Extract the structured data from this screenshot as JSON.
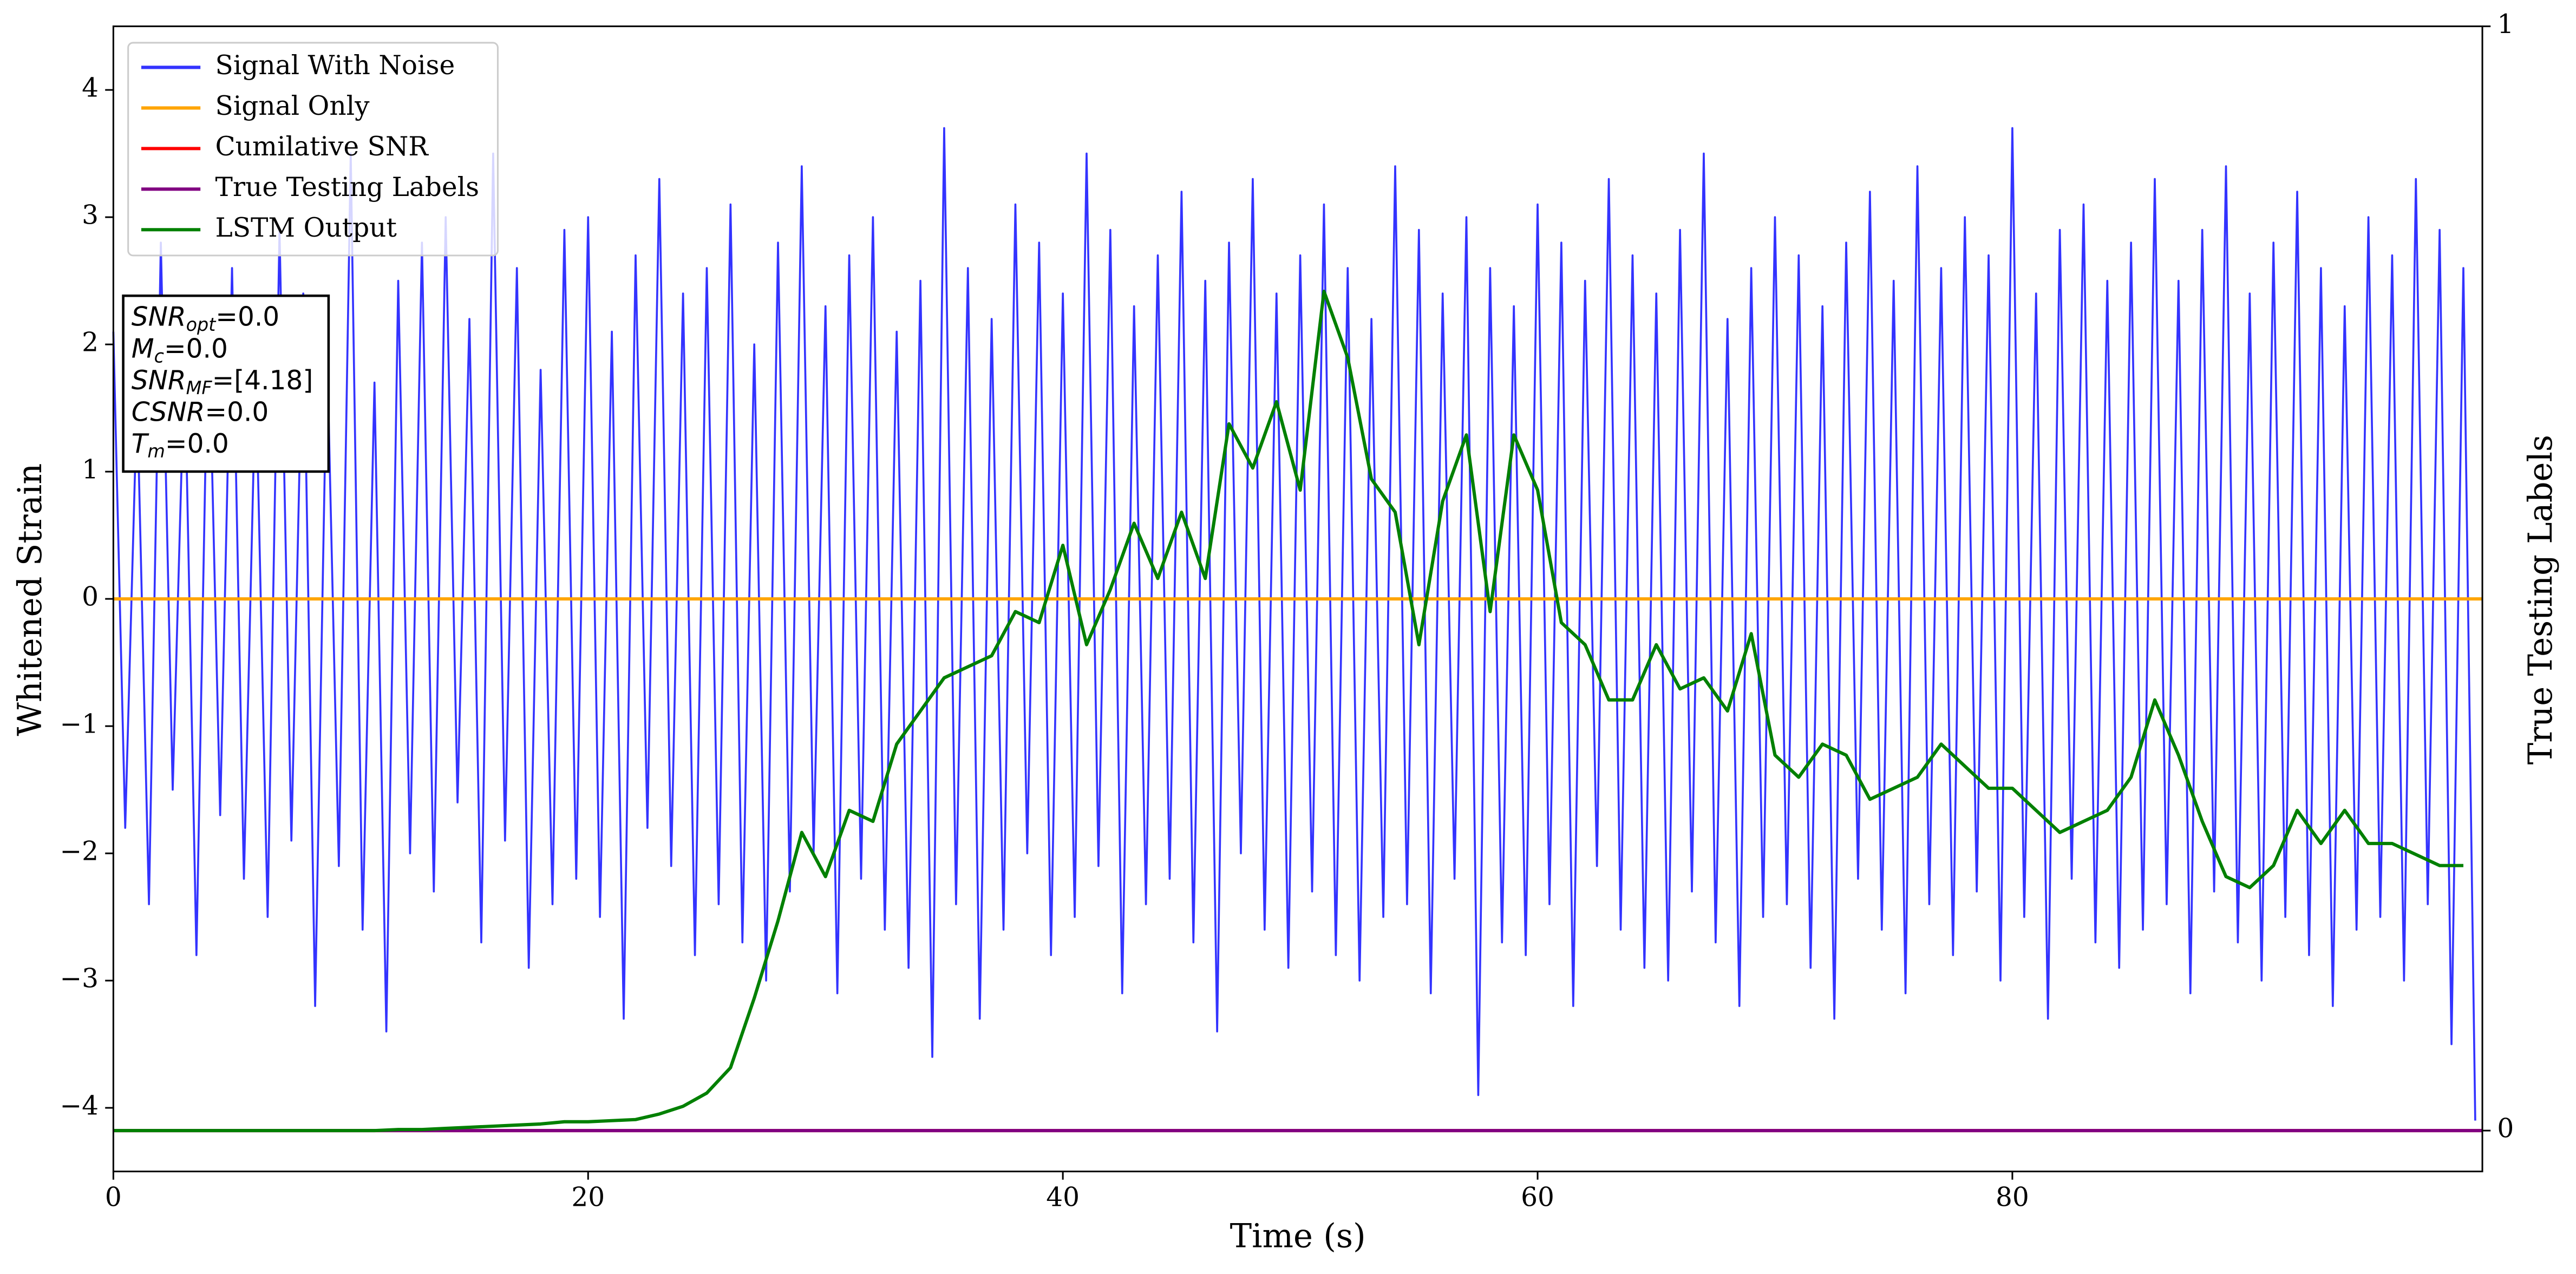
{
  "chart_data": {
    "type": "line",
    "xlabel": "Time (s)",
    "ylabel": "Whitened Strain",
    "y2label": "True Testing Labels",
    "xlim": [
      0,
      99.8
    ],
    "xticks": [
      0,
      20,
      40,
      60,
      80
    ],
    "ylim": [
      -4.5,
      4.5
    ],
    "yticks": [
      {
        "value": -4,
        "label": "−4"
      },
      {
        "value": -3,
        "label": "−3"
      },
      {
        "value": -2,
        "label": "−2"
      },
      {
        "value": -1,
        "label": "−1"
      },
      0,
      1,
      2,
      3,
      4
    ],
    "y2lim": [
      -0.037,
      1
    ],
    "y2ticks": [
      0,
      1
    ],
    "legend": "upper left",
    "annotations": [
      {
        "base": "SNR",
        "sub": "opt",
        "rest": "=0.0"
      },
      {
        "base": "M",
        "sub": "c",
        "rest": "=0.0"
      },
      {
        "base": "SNR",
        "sub": "MF",
        "rest": "=[4.18]"
      },
      {
        "base": "CSNR",
        "sub": null,
        "rest": "=0.0"
      },
      {
        "base": "T",
        "sub": "m",
        "rest": "=0.0"
      }
    ],
    "series": [
      {
        "name": "Signal With Noise",
        "color": "#3333ff",
        "axis": "y",
        "x": [
          0,
          0.5,
          1,
          1.5,
          2,
          2.5,
          3,
          3.5,
          4,
          4.5,
          5,
          5.5,
          6,
          6.5,
          7,
          7.5,
          8,
          8.5,
          9,
          9.5,
          10,
          10.5,
          11,
          11.5,
          12,
          12.5,
          13,
          13.5,
          14,
          14.5,
          15,
          15.5,
          16,
          16.5,
          17,
          17.5,
          18,
          18.5,
          19,
          19.5,
          20,
          20.5,
          21,
          21.5,
          22,
          22.5,
          23,
          23.5,
          24,
          24.5,
          25,
          25.5,
          26,
          26.5,
          27,
          27.5,
          28,
          28.5,
          29,
          29.5,
          30,
          30.5,
          31,
          31.5,
          32,
          32.5,
          33,
          33.5,
          34,
          34.5,
          35,
          35.5,
          36,
          36.5,
          37,
          37.5,
          38,
          38.5,
          39,
          39.5,
          40,
          40.5,
          41,
          41.5,
          42,
          42.5,
          43,
          43.5,
          44,
          44.5,
          45,
          45.5,
          46,
          46.5,
          47,
          47.5,
          48,
          48.5,
          49,
          49.5,
          50,
          50.5,
          51,
          51.5,
          52,
          52.5,
          53,
          53.5,
          54,
          54.5,
          55,
          55.5,
          56,
          56.5,
          57,
          57.5,
          58,
          58.5,
          59,
          59.5,
          60,
          60.5,
          61,
          61.5,
          62,
          62.5,
          63,
          63.5,
          64,
          64.5,
          65,
          65.5,
          66,
          66.5,
          67,
          67.5,
          68,
          68.5,
          69,
          69.5,
          70,
          70.5,
          71,
          71.5,
          72,
          72.5,
          73,
          73.5,
          74,
          74.5,
          75,
          75.5,
          76,
          76.5,
          77,
          77.5,
          78,
          78.5,
          79,
          79.5,
          80,
          80.5,
          81,
          81.5,
          82,
          82.5,
          83,
          83.5,
          84,
          84.5,
          85,
          85.5,
          86,
          86.5,
          87,
          87.5,
          88,
          88.5,
          89,
          89.5,
          90,
          90.5,
          91,
          91.5,
          92,
          92.5,
          93,
          93.5,
          94,
          94.5,
          95,
          95.5,
          96,
          96.5,
          97,
          97.5,
          98,
          98.5,
          99,
          99.5
        ],
        "values": [
          2.1,
          -1.8,
          1.6,
          -2.4,
          2.8,
          -1.5,
          1.9,
          -2.8,
          2.3,
          -1.7,
          2.6,
          -2.2,
          1.8,
          -2.5,
          2.9,
          -1.9,
          2.4,
          -3.2,
          2.0,
          -2.1,
          3.5,
          -2.6,
          1.7,
          -3.4,
          2.5,
          -2.0,
          2.8,
          -2.3,
          3.0,
          -1.6,
          2.2,
          -2.7,
          3.5,
          -1.9,
          2.6,
          -2.9,
          1.8,
          -2.4,
          2.9,
          -2.2,
          3.0,
          -2.5,
          2.1,
          -3.3,
          2.7,
          -1.8,
          3.3,
          -2.1,
          2.4,
          -2.8,
          2.6,
          -2.4,
          3.1,
          -2.7,
          2.0,
          -3.0,
          2.8,
          -2.3,
          3.4,
          -2.0,
          2.3,
          -3.1,
          2.7,
          -2.2,
          3.0,
          -2.6,
          2.1,
          -2.9,
          2.5,
          -3.6,
          3.7,
          -2.4,
          2.6,
          -3.3,
          2.2,
          -2.6,
          3.1,
          -2.0,
          2.8,
          -2.8,
          2.4,
          -2.5,
          3.5,
          -2.1,
          2.9,
          -3.1,
          2.3,
          -2.4,
          2.7,
          -2.2,
          3.2,
          -2.7,
          2.5,
          -3.4,
          2.8,
          -2.0,
          3.3,
          -2.6,
          2.4,
          -2.9,
          2.7,
          -2.3,
          3.1,
          -2.8,
          2.6,
          -3.0,
          2.2,
          -2.5,
          3.4,
          -2.4,
          2.9,
          -3.1,
          2.4,
          -2.2,
          3.0,
          -3.9,
          2.6,
          -2.7,
          2.3,
          -2.8,
          3.1,
          -2.4,
          2.8,
          -3.2,
          2.5,
          -2.1,
          3.3,
          -2.6,
          2.7,
          -2.9,
          2.4,
          -3.0,
          2.9,
          -2.3,
          3.5,
          -2.7,
          2.2,
          -3.2,
          2.6,
          -2.5,
          3.0,
          -2.4,
          2.7,
          -2.9,
          2.3,
          -3.3,
          2.8,
          -2.2,
          3.2,
          -2.6,
          2.5,
          -3.1,
          3.4,
          -2.4,
          2.6,
          -2.8,
          3.0,
          -2.3,
          2.7,
          -3.0,
          3.7,
          -2.5,
          2.4,
          -3.3,
          2.9,
          -2.2,
          3.1,
          -2.7,
          2.5,
          -2.9,
          2.8,
          -2.6,
          3.3,
          -2.4,
          2.5,
          -3.1,
          2.9,
          -2.3,
          3.4,
          -2.7,
          2.4,
          -3.0,
          2.8,
          -2.5,
          3.2,
          -2.8,
          2.6,
          -3.2,
          2.3,
          -2.6,
          3.0,
          -2.5,
          2.7,
          -3.0,
          3.3,
          -2.4,
          2.9,
          -3.5,
          2.6,
          -4.1
        ]
      },
      {
        "name": "Signal Only",
        "color": "#ffa500",
        "axis": "y",
        "x": [
          0,
          99.8
        ],
        "values": [
          0,
          0
        ]
      },
      {
        "name": "Cumilative SNR",
        "color": "#ff0000",
        "axis": "y2",
        "x": [
          0,
          99.8
        ],
        "values": [
          0,
          0
        ]
      },
      {
        "name": "True Testing Labels",
        "color": "#800080",
        "axis": "y2",
        "x": [
          0,
          99.8
        ],
        "values": [
          0,
          0
        ]
      },
      {
        "name": "LSTM Output",
        "color": "#008000",
        "axis": "y2",
        "x": [
          0,
          1,
          2,
          3,
          4,
          5,
          6,
          7,
          8,
          9,
          10,
          11,
          12,
          13,
          14,
          15,
          16,
          17,
          18,
          19,
          20,
          21,
          22,
          23,
          24,
          25,
          26,
          27,
          28,
          29,
          30,
          31,
          32,
          33,
          34,
          35,
          36,
          37,
          38,
          39,
          40,
          41,
          42,
          43,
          44,
          45,
          46,
          47,
          48,
          49,
          50,
          51,
          52,
          53,
          54,
          55,
          56,
          57,
          58,
          59,
          60,
          61,
          62,
          63,
          64,
          65,
          66,
          67,
          68,
          69,
          70,
          71,
          72,
          73,
          74,
          75,
          76,
          77,
          78,
          79,
          80,
          81,
          82,
          83,
          84,
          85,
          86,
          87,
          88,
          89,
          90,
          91,
          92,
          93,
          94,
          95,
          96,
          97,
          98,
          99
        ],
        "values": [
          0,
          0,
          0,
          0,
          0,
          0,
          0,
          0,
          0,
          0,
          0,
          0,
          0.001,
          0.001,
          0.002,
          0.003,
          0.004,
          0.005,
          0.006,
          0.008,
          0.008,
          0.009,
          0.01,
          0.015,
          0.022,
          0.034,
          0.057,
          0.12,
          0.19,
          0.27,
          0.23,
          0.29,
          0.28,
          0.35,
          0.38,
          0.41,
          0.42,
          0.43,
          0.47,
          0.46,
          0.53,
          0.44,
          0.49,
          0.55,
          0.5,
          0.56,
          0.5,
          0.64,
          0.6,
          0.66,
          0.58,
          0.76,
          0.7,
          0.59,
          0.56,
          0.44,
          0.57,
          0.63,
          0.47,
          0.63,
          0.58,
          0.46,
          0.44,
          0.39,
          0.39,
          0.44,
          0.4,
          0.41,
          0.38,
          0.45,
          0.34,
          0.32,
          0.35,
          0.34,
          0.3,
          0.31,
          0.32,
          0.35,
          0.33,
          0.31,
          0.31,
          0.29,
          0.27,
          0.28,
          0.29,
          0.32,
          0.39,
          0.34,
          0.28,
          0.23,
          0.22,
          0.24,
          0.29,
          0.26,
          0.29,
          0.26,
          0.26,
          0.25,
          0.24,
          0.24
        ]
      }
    ]
  }
}
